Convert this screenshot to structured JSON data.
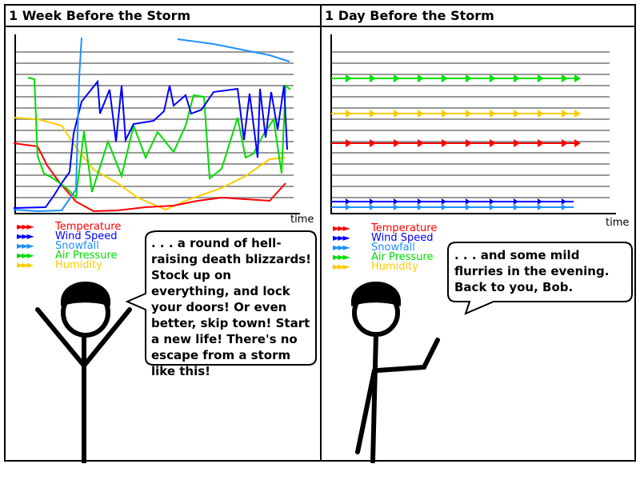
{
  "panels": [
    {
      "title": "1 Week Before the Storm",
      "x_label": "time",
      "speech": ". . . a round of hell-raising death blizzards! Stock up on everything, and lock your doors! Or even better, skip town! Start a new life! There's no escape from a storm like this!"
    },
    {
      "title": "1 Day Before the Storm",
      "x_label": "time",
      "speech": ". . . and some mild flurries in the evening. Back to you, Bob."
    }
  ],
  "legend": [
    {
      "label": "Temperature",
      "color": "#ff0000"
    },
    {
      "label": "Wind Speed",
      "color": "#0000ff"
    },
    {
      "label": "Snowfall",
      "color": "#1e90ff"
    },
    {
      "label": "Air Pressure",
      "color": "#00dd00"
    },
    {
      "label": "Humidity",
      "color": "#ffcc00"
    }
  ]
}
